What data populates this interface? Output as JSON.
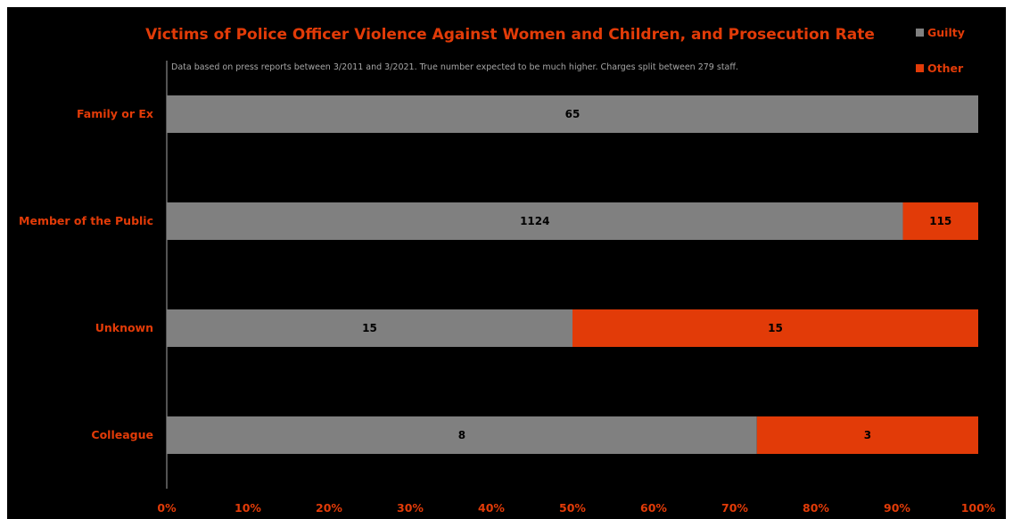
{
  "chart_data": {
    "type": "bar",
    "orientation": "horizontal",
    "stacked": "percent",
    "title": "Victims of Police Officer Violence Against Women and Children, and Prosecution Rate",
    "subtitle": "Data based on press reports between 3/2011 and 3/2021. True number expected to be much higher. Charges split between 279 staff.",
    "categories": [
      "Family or Ex",
      "Member of the Public",
      "Unknown",
      "Colleague"
    ],
    "series": [
      {
        "name": "Guilty",
        "color": "#808080",
        "values": [
          65,
          1124,
          15,
          8
        ]
      },
      {
        "name": "Other",
        "color": "#e23b08",
        "values": [
          0,
          115,
          15,
          3
        ]
      }
    ],
    "x_ticks": [
      "0%",
      "10%",
      "20%",
      "30%",
      "40%",
      "50%",
      "60%",
      "70%",
      "80%",
      "90%",
      "100%"
    ],
    "xlim": [
      0,
      100
    ],
    "grid": false,
    "legend_position": "top-right",
    "colors": {
      "background": "#000000",
      "accent": "#e23b08",
      "guilty": "#808080",
      "axis": "#a6a6a6"
    }
  }
}
